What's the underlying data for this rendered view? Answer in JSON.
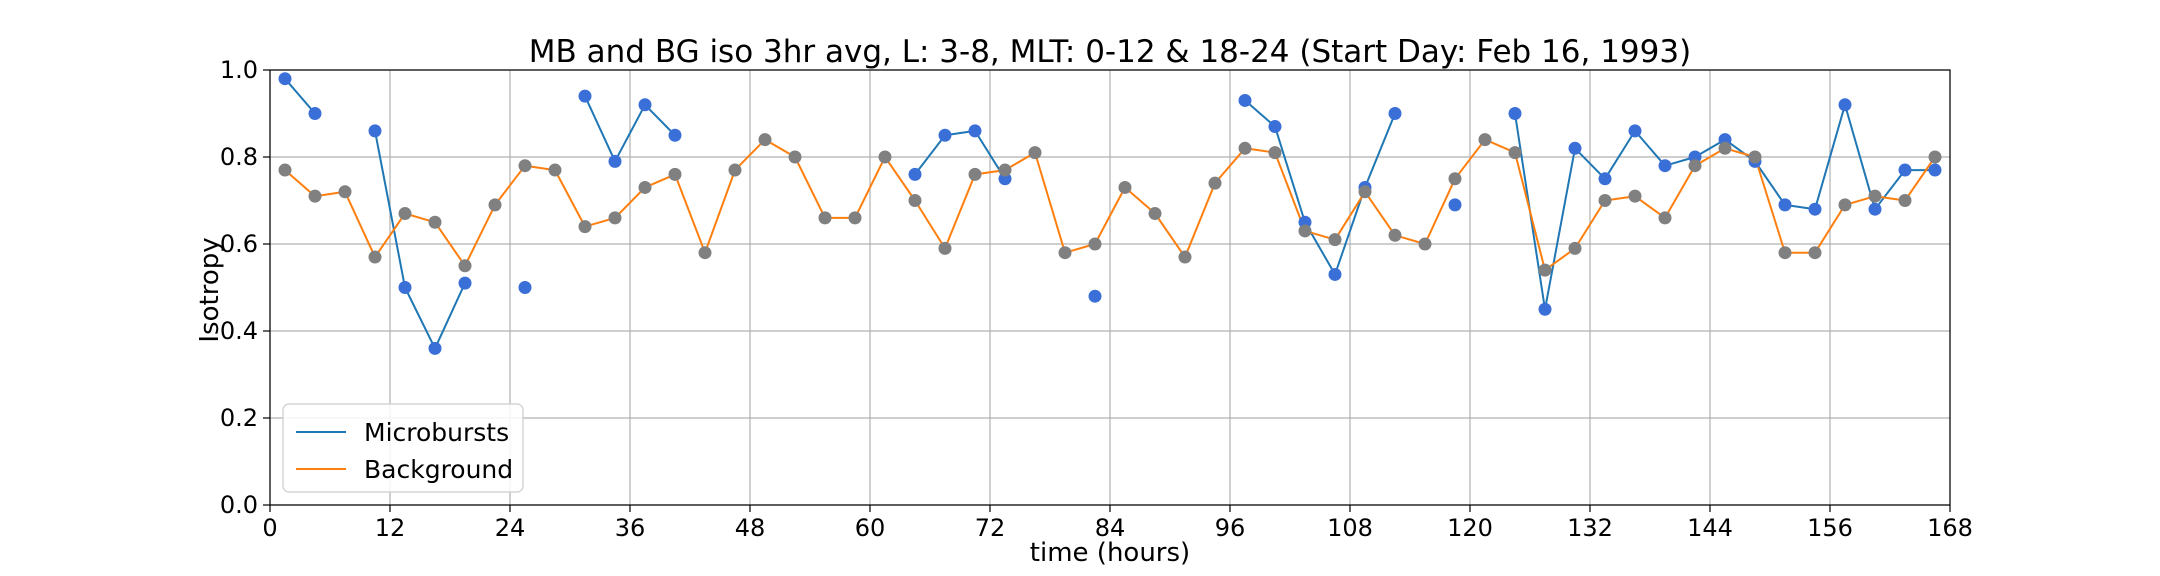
{
  "chart_data": {
    "type": "line",
    "title": "MB and BG iso 3hr avg, L: 3-8, MLT: 0-12 & 18-24 (Start Day: Feb 16, 1993)",
    "xlabel": "time (hours)",
    "ylabel": "Isotropy",
    "xlim": [
      0,
      168
    ],
    "ylim": [
      0.0,
      1.0
    ],
    "xticks": [
      0,
      12,
      24,
      36,
      48,
      60,
      72,
      84,
      96,
      108,
      120,
      132,
      144,
      156,
      168
    ],
    "yticks": [
      0.0,
      0.2,
      0.4,
      0.6,
      0.8,
      1.0
    ],
    "xtick_labels": [
      "0",
      "12",
      "24",
      "36",
      "48",
      "60",
      "72",
      "84",
      "96",
      "108",
      "120",
      "132",
      "144",
      "156",
      "168"
    ],
    "ytick_labels": [
      "0.0",
      "0.2",
      "0.4",
      "0.6",
      "0.8",
      "1.0"
    ],
    "grid": true,
    "legend_position": "bottom-left",
    "colors": {
      "microbursts_line": "#1f77b4",
      "microbursts_marker": "#3b6fd8",
      "background_line": "#ff7f0e",
      "background_marker": "#808080"
    },
    "series": [
      {
        "name": "Microbursts",
        "x": [
          1.5,
          4.5,
          7.5,
          10.5,
          13.5,
          16.5,
          19.5,
          22.5,
          25.5,
          28.5,
          31.5,
          34.5,
          37.5,
          40.5,
          43.5,
          46.5,
          49.5,
          52.5,
          55.5,
          58.5,
          61.5,
          64.5,
          67.5,
          70.5,
          73.5,
          76.5,
          79.5,
          82.5,
          85.5,
          88.5,
          91.5,
          94.5,
          97.5,
          100.5,
          103.5,
          106.5,
          109.5,
          112.5,
          115.5,
          118.5,
          121.5,
          124.5,
          127.5,
          130.5,
          133.5,
          136.5,
          139.5,
          142.5,
          145.5,
          148.5,
          151.5,
          154.5,
          157.5,
          160.5,
          163.5,
          166.5
        ],
        "y": [
          0.98,
          0.9,
          null,
          0.86,
          0.5,
          0.36,
          0.51,
          null,
          0.5,
          null,
          0.94,
          0.79,
          0.92,
          0.85,
          null,
          null,
          null,
          null,
          null,
          null,
          null,
          0.76,
          0.85,
          0.86,
          0.75,
          null,
          null,
          0.48,
          null,
          null,
          null,
          null,
          0.93,
          0.87,
          0.65,
          0.53,
          0.73,
          0.9,
          null,
          0.69,
          null,
          0.9,
          0.45,
          0.82,
          0.75,
          0.86,
          0.78,
          0.8,
          0.84,
          0.79,
          0.69,
          0.68,
          0.92,
          0.68,
          0.77,
          0.77
        ]
      },
      {
        "name": "Background",
        "x": [
          1.5,
          4.5,
          7.5,
          10.5,
          13.5,
          16.5,
          19.5,
          22.5,
          25.5,
          28.5,
          31.5,
          34.5,
          37.5,
          40.5,
          43.5,
          46.5,
          49.5,
          52.5,
          55.5,
          58.5,
          61.5,
          64.5,
          67.5,
          70.5,
          73.5,
          76.5,
          79.5,
          82.5,
          85.5,
          88.5,
          91.5,
          94.5,
          97.5,
          100.5,
          103.5,
          106.5,
          109.5,
          112.5,
          115.5,
          118.5,
          121.5,
          124.5,
          127.5,
          130.5,
          133.5,
          136.5,
          139.5,
          142.5,
          145.5,
          148.5,
          151.5,
          154.5,
          157.5,
          160.5,
          163.5,
          166.5
        ],
        "y": [
          0.77,
          0.71,
          0.72,
          0.57,
          0.67,
          0.65,
          0.55,
          0.69,
          0.78,
          0.77,
          0.64,
          0.66,
          0.73,
          0.76,
          0.58,
          0.77,
          0.84,
          0.8,
          0.66,
          0.66,
          0.8,
          0.7,
          0.59,
          0.76,
          0.77,
          0.81,
          0.58,
          0.6,
          0.73,
          0.67,
          0.57,
          0.74,
          0.82,
          0.81,
          0.63,
          0.61,
          0.72,
          0.62,
          0.6,
          0.75,
          0.84,
          0.81,
          0.54,
          0.59,
          0.7,
          0.71,
          0.66,
          0.78,
          0.82,
          0.8,
          0.58,
          0.58,
          0.69,
          0.71,
          0.7,
          0.8
        ]
      }
    ]
  }
}
